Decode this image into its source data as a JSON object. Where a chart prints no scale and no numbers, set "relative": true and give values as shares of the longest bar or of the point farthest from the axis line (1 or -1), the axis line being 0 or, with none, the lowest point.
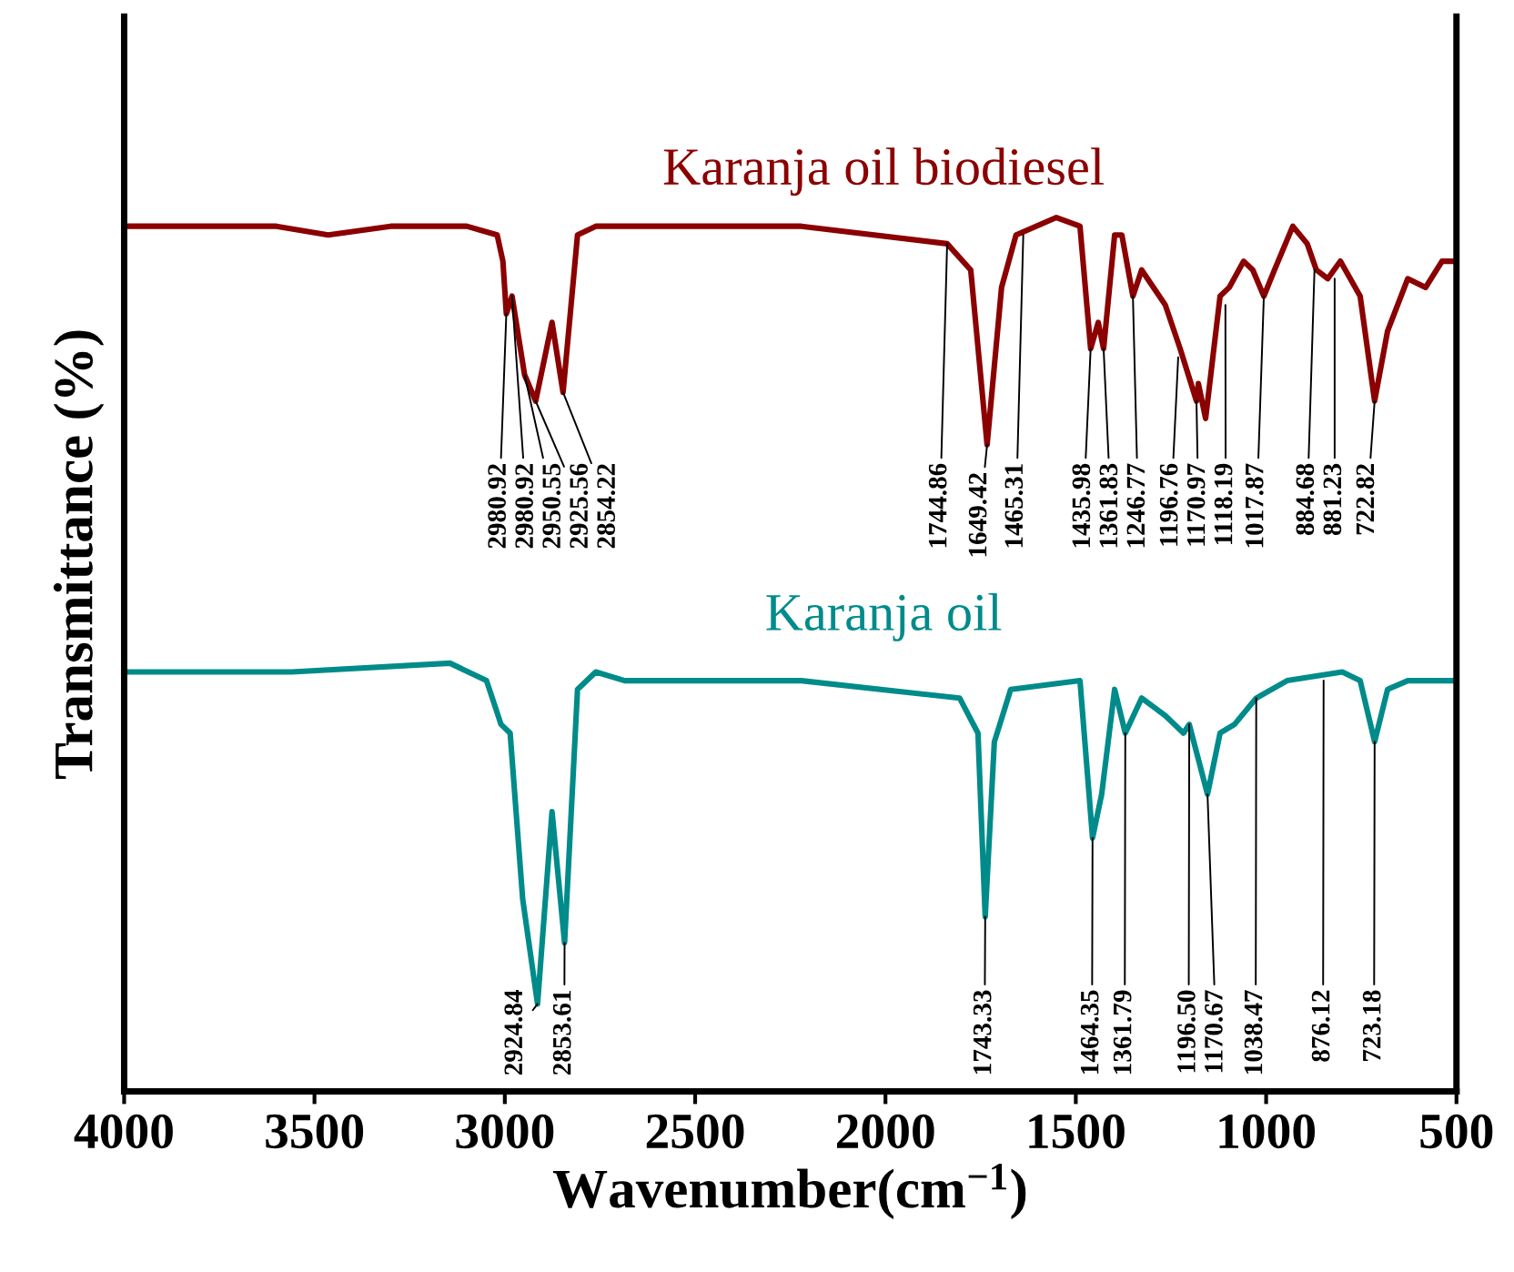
{
  "chart_data": {
    "type": "line",
    "relative": true,
    "xlabel": "Wavenumber(cm$^{−1}$)",
    "ylabel": "Transmittance (%)",
    "xlim": [
      4000,
      500
    ],
    "xticks": [
      4000,
      3500,
      3000,
      2500,
      2000,
      1500,
      1000,
      500
    ],
    "grid": false,
    "legend": false,
    "marker": "none",
    "line_style": "solid",
    "series": [
      {
        "name": "Karanja oil biodiesel",
        "color": "#8b0000",
        "x": [
          4000,
          3800,
          3600,
          3464,
          3300,
          3100,
          3020,
          3005,
          2996,
          2981,
          2948,
          2919,
          2876,
          2847,
          2809,
          2761,
          2700,
          2500,
          2221,
          1838,
          1776,
          1733,
          1695,
          1657,
          1551,
          1489,
          1461,
          1441,
          1427,
          1398,
          1379,
          1350,
          1327,
          1265,
          1226,
          1183,
          1178,
          1159,
          1121,
          1097,
          1059,
          1035,
          1006,
          978,
          930,
          892,
          868,
          838,
          805,
          753,
          715,
          681,
          628,
          581,
          538,
          500
        ],
        "values": [
          0.99,
          0.99,
          0.99,
          0.98,
          0.99,
          0.99,
          0.98,
          0.95,
          0.89,
          0.91,
          0.82,
          0.79,
          0.88,
          0.8,
          0.98,
          0.99,
          0.99,
          0.99,
          0.99,
          0.97,
          0.94,
          0.74,
          0.92,
          0.98,
          1.0,
          0.99,
          0.85,
          0.88,
          0.85,
          0.98,
          0.98,
          0.91,
          0.94,
          0.9,
          0.85,
          0.79,
          0.81,
          0.77,
          0.91,
          0.92,
          0.95,
          0.94,
          0.91,
          0.94,
          0.99,
          0.97,
          0.94,
          0.93,
          0.95,
          0.91,
          0.79,
          0.87,
          0.93,
          0.92,
          0.95,
          0.95
        ]
      },
      {
        "name": "Karanja oil",
        "color": "#008b8b",
        "x": [
          4000,
          3560,
          3144,
          3048,
          3010,
          2986,
          2953,
          2914,
          2876,
          2843,
          2809,
          2761,
          2685,
          2221,
          1805,
          1757,
          1738,
          1714,
          1671,
          1489,
          1456,
          1432,
          1398,
          1370,
          1327,
          1265,
          1217,
          1202,
          1154,
          1121,
          1083,
          1026,
          945,
          800,
          753,
          715,
          681,
          628,
          500
        ],
        "values": [
          0.48,
          0.48,
          0.49,
          0.47,
          0.42,
          0.41,
          0.22,
          0.1,
          0.32,
          0.17,
          0.46,
          0.48,
          0.47,
          0.47,
          0.45,
          0.41,
          0.2,
          0.4,
          0.46,
          0.47,
          0.29,
          0.34,
          0.46,
          0.41,
          0.45,
          0.43,
          0.41,
          0.42,
          0.34,
          0.41,
          0.42,
          0.45,
          0.47,
          0.48,
          0.47,
          0.4,
          0.46,
          0.47,
          0.47
        ]
      }
    ],
    "annotations": [
      {
        "text": "2980.92",
        "x": 2981,
        "y": 0.91
      },
      {
        "text": "2980.92",
        "x": 2996,
        "y": 0.89
      },
      {
        "text": "2950.55",
        "x": 2948,
        "y": 0.82
      },
      {
        "text": "2925.56",
        "x": 2919,
        "y": 0.79
      },
      {
        "text": "2854.22",
        "x": 2847,
        "y": 0.8
      },
      {
        "text": "1744.86",
        "x": 1838,
        "y": 0.97
      },
      {
        "text": "1649.42",
        "x": 1733,
        "y": 0.74
      },
      {
        "text": "1465.31",
        "x": 1638,
        "y": 0.98
      },
      {
        "text": "1435.98",
        "x": 1461,
        "y": 0.85
      },
      {
        "text": "1361.83",
        "x": 1427,
        "y": 0.85
      },
      {
        "text": "1246.77",
        "x": 1350,
        "y": 0.91
      },
      {
        "text": "1196.76",
        "x": 1231,
        "y": 0.84
      },
      {
        "text": "1170.97",
        "x": 1183,
        "y": 0.79
      },
      {
        "text": "1118.19",
        "x": 1107,
        "y": 0.9
      },
      {
        "text": "1017.87",
        "x": 1006,
        "y": 0.91
      },
      {
        "text": "884.68",
        "x": 873,
        "y": 0.94
      },
      {
        "text": "881.23",
        "x": 820,
        "y": 0.93
      },
      {
        "text": "722.82",
        "x": 715,
        "y": 0.79
      },
      {
        "text": "2924.84",
        "x": 2914,
        "y": 0.1
      },
      {
        "text": "2853.61",
        "x": 2843,
        "y": 0.17
      },
      {
        "text": "1743.33",
        "x": 1738,
        "y": 0.2
      },
      {
        "text": "1464.35",
        "x": 1456,
        "y": 0.29
      },
      {
        "text": "1361.79",
        "x": 1370,
        "y": 0.41
      },
      {
        "text": "1196.50",
        "x": 1202,
        "y": 0.42
      },
      {
        "text": "1170.67",
        "x": 1154,
        "y": 0.34
      },
      {
        "text": "1038.47",
        "x": 1026,
        "y": 0.45
      },
      {
        "text": "876.12",
        "x": 849,
        "y": 0.47
      },
      {
        "text": "723.18",
        "x": 715,
        "y": 0.4
      }
    ]
  }
}
